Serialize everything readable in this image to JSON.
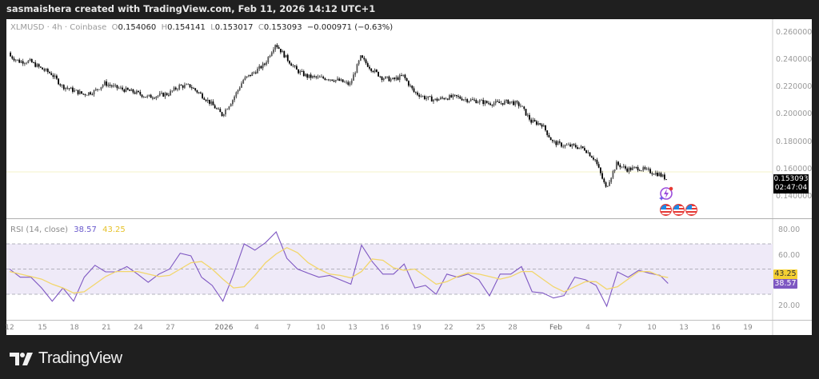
{
  "header": {
    "attribution": "sasmaishera created with TradingView.com, Feb 11, 2026 14:12 UTC+1"
  },
  "legend": {
    "symbol": "XLMUSD",
    "interval": "4h",
    "exchange": "Coinbase",
    "open_prefix": "O",
    "open": "0.154060",
    "high_prefix": "H",
    "high": "0.154141",
    "low_prefix": "L",
    "low": "0.153017",
    "close_prefix": "C",
    "close": "0.153093",
    "change": "−0.000971 (−0.63%)"
  },
  "price_axis": {
    "ticks": [
      "0.260000",
      "0.240000",
      "0.220000",
      "0.200000",
      "0.180000",
      "0.160000",
      "0.140000"
    ]
  },
  "last_price": {
    "value": "0.153093",
    "countdown": "02:47:04"
  },
  "rsi": {
    "label": "RSI (14, close)",
    "value": "38.57",
    "ma_value": "43.25",
    "ticks": [
      "80.00",
      "60.00",
      "20.00"
    ]
  },
  "time_axis": {
    "labels": [
      "12",
      "15",
      "18",
      "21",
      "24",
      "27",
      "2026",
      "4",
      "7",
      "10",
      "13",
      "16",
      "19",
      "22",
      "25",
      "28",
      "Feb",
      "4",
      "7",
      "10",
      "13",
      "16",
      "19"
    ]
  },
  "icons": {
    "event_icon": "lightning-bolt-icon",
    "flags": [
      "us-flag-icon",
      "us-flag-icon",
      "us-flag-icon"
    ]
  },
  "colors": {
    "candle": "#000000",
    "rsi_line": "#7e57c2",
    "rsi_ma": "#f2d66b",
    "rsi_band": "#ede7f6",
    "last_price_bg": "#000000",
    "ma_badge": "#f5d033",
    "rsi_badge": "#7e57c2"
  },
  "logo": {
    "text": "TradingView"
  },
  "chart_data": [
    {
      "type": "candlestick",
      "title": "XLMUSD · 4h · Coinbase",
      "ylim": [
        0.13,
        0.27
      ],
      "grid": false,
      "x": [
        "Dec 12",
        "Dec 13",
        "Dec 14",
        "Dec 15",
        "Dec 16",
        "Dec 17",
        "Dec 18",
        "Dec 19",
        "Dec 20",
        "Dec 21",
        "Dec 22",
        "Dec 23",
        "Dec 24",
        "Dec 25",
        "Dec 26",
        "Dec 27",
        "Dec 28",
        "Dec 29",
        "Dec 30",
        "Dec 31",
        "Jan 1",
        "Jan 2",
        "Jan 3",
        "Jan 4",
        "Jan 5",
        "Jan 6",
        "Jan 7",
        "Jan 8",
        "Jan 9",
        "Jan 10",
        "Jan 11",
        "Jan 12",
        "Jan 13",
        "Jan 14",
        "Jan 15",
        "Jan 16",
        "Jan 17",
        "Jan 18",
        "Jan 19",
        "Jan 20",
        "Jan 21",
        "Jan 22",
        "Jan 23",
        "Jan 24",
        "Jan 25",
        "Jan 26",
        "Jan 27",
        "Jan 28",
        "Jan 29",
        "Jan 30",
        "Jan 31",
        "Feb 1",
        "Feb 2",
        "Feb 3",
        "Feb 4",
        "Feb 5",
        "Feb 6",
        "Feb 7",
        "Feb 8",
        "Feb 9",
        "Feb 10",
        "Feb 11"
      ],
      "close": [
        0.2435,
        0.239,
        0.239,
        0.234,
        0.23,
        0.221,
        0.218,
        0.215,
        0.217,
        0.223,
        0.22,
        0.218,
        0.216,
        0.213,
        0.214,
        0.2155,
        0.221,
        0.221,
        0.215,
        0.208,
        0.2,
        0.211,
        0.2255,
        0.231,
        0.237,
        0.252,
        0.242,
        0.2325,
        0.228,
        0.227,
        0.2266,
        0.2249,
        0.222,
        0.242,
        0.2337,
        0.2272,
        0.2255,
        0.2284,
        0.2167,
        0.2126,
        0.2108,
        0.2126,
        0.213,
        0.211,
        0.21,
        0.2085,
        0.2085,
        0.2097,
        0.2067,
        0.195,
        0.193,
        0.18,
        0.1775,
        0.177,
        0.175,
        0.167,
        0.1464,
        0.164,
        0.16,
        0.161,
        0.1587,
        0.1564
      ],
      "last_close": 0.153093
    },
    {
      "type": "line",
      "title": "RSI (14, close)",
      "ylim": [
        10,
        90
      ],
      "bands": [
        30,
        50,
        70
      ],
      "series": [
        {
          "name": "RSI",
          "values": [
            50,
            43.5,
            43.5,
            35,
            24.5,
            35,
            24.5,
            43.5,
            53,
            47.8,
            47.8,
            52,
            46,
            39.5,
            46,
            50,
            62.6,
            60.5,
            43.5,
            37,
            24.5,
            46,
            70,
            65,
            71,
            79.5,
            58.5,
            50,
            46.7,
            43.5,
            45,
            41.5,
            38,
            69,
            56,
            46,
            46,
            54,
            35,
            37,
            30,
            46,
            43.5,
            46,
            41.5,
            28.7,
            46,
            46,
            52,
            32,
            31,
            27,
            29,
            43.5,
            41.5,
            37,
            20.5,
            47.8,
            43.5,
            49,
            46.7,
            45
          ],
          "last": 38.57
        },
        {
          "name": "RSI-based MA",
          "values": [
            48,
            46,
            44,
            42,
            38,
            35,
            31,
            32,
            38,
            44,
            48,
            48,
            48,
            46,
            44,
            45,
            50,
            55,
            56,
            50,
            42,
            35,
            36,
            45,
            55,
            62,
            67,
            63,
            55,
            50,
            46,
            45,
            43,
            48,
            58,
            57,
            51,
            49,
            50,
            44,
            38,
            40,
            44,
            47,
            46,
            44,
            42,
            44,
            48,
            48,
            42,
            36,
            32,
            36,
            40,
            40,
            34,
            36,
            42,
            48,
            48,
            44.5
          ],
          "last": 43.25
        }
      ]
    }
  ]
}
